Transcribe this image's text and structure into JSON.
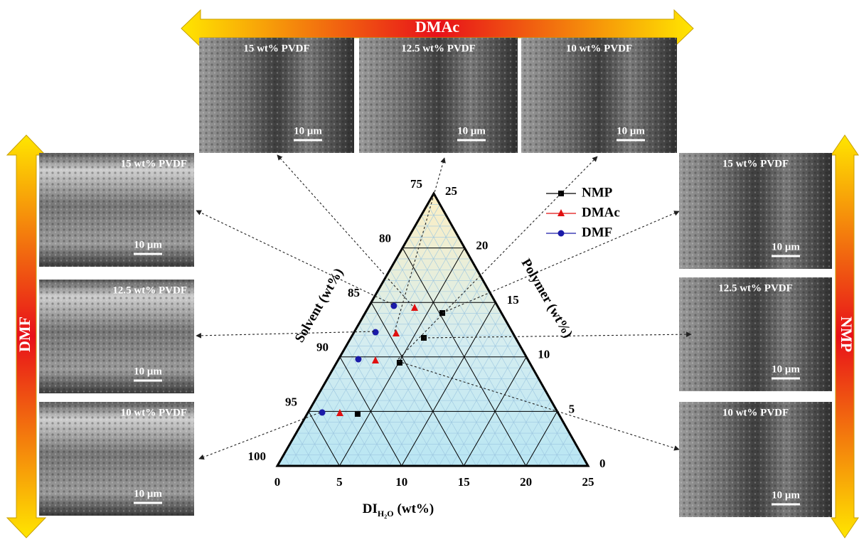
{
  "chart_data": {
    "type": "ternary",
    "xlabel": {
      "main": "DI",
      "sub": "H",
      "subsub": "2",
      "sub2": "O",
      "unit": "(wt%)"
    },
    "ylabel": "Polymer (wt%)",
    "zlabel": "Solvent (wt%)",
    "xlim": [
      0,
      25
    ],
    "xticks": [
      0,
      5,
      10,
      15,
      20,
      25
    ],
    "ylim": [
      0,
      25
    ],
    "yticks": [
      0,
      5,
      10,
      15,
      20,
      25
    ],
    "zlim": [
      75,
      100
    ],
    "zticks": [
      75,
      80,
      85,
      90,
      95,
      100
    ],
    "grid": true,
    "series": [
      {
        "name": "NMP",
        "color": "#000000",
        "marker": "square",
        "x": [
          6.21,
          5.87,
          5.07,
          4.06
        ],
        "values": [
          14.03,
          11.75,
          9.47,
          4.77
        ]
      },
      {
        "name": "DMAc",
        "color": "#e01010",
        "marker": "triangle",
        "x": [
          3.75,
          3.44,
          3.03,
          2.6
        ],
        "values": [
          14.49,
          12.14,
          9.66,
          4.83
        ]
      },
      {
        "name": "DMF",
        "color": "#1a1aa8",
        "marker": "circle",
        "x": [
          1.98,
          1.72,
          1.59,
          1.14
        ],
        "values": [
          14.69,
          12.27,
          9.79,
          4.9
        ]
      }
    ]
  },
  "groups": [
    {
      "label": "DMAc",
      "images": [
        {
          "title": "15 wt% PVDF",
          "scale": "10 μm"
        },
        {
          "title": "12.5 wt% PVDF",
          "scale": "10 μm"
        },
        {
          "title": "10 wt% PVDF",
          "scale": "10 μm"
        }
      ]
    },
    {
      "label": "DMF",
      "images": [
        {
          "title": "15 wt% PVDF",
          "scale": "10 μm"
        },
        {
          "title": "12.5 wt% PVDF",
          "scale": "10 μm"
        },
        {
          "title": "10 wt% PVDF",
          "scale": "10 μm"
        }
      ]
    },
    {
      "label": "NMP",
      "images": [
        {
          "title": "15 wt% PVDF",
          "scale": "10 μm"
        },
        {
          "title": "12.5 wt% PVDF",
          "scale": "10 μm"
        },
        {
          "title": "10 wt% PVDF",
          "scale": "10 μm"
        }
      ]
    }
  ]
}
